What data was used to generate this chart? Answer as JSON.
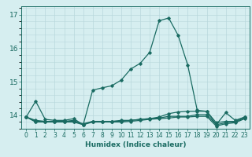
{
  "xlabel": "Humidex (Indice chaleur)",
  "bg_color": "#d6eef0",
  "grid_color": "#b8d8dc",
  "line_color": "#1a6b62",
  "xlim": [
    -0.5,
    23.5
  ],
  "ylim": [
    13.6,
    17.25
  ],
  "yticks": [
    14,
    15,
    16,
    17
  ],
  "xticks": [
    0,
    1,
    2,
    3,
    4,
    5,
    6,
    7,
    8,
    9,
    10,
    11,
    12,
    13,
    14,
    15,
    16,
    17,
    18,
    19,
    20,
    21,
    22,
    23
  ],
  "series": [
    {
      "x": [
        0,
        1,
        2,
        3,
        4,
        5,
        6,
        7,
        8,
        9,
        10,
        11,
        12,
        13,
        14,
        15,
        16,
        17,
        18,
        19,
        20,
        21,
        22,
        23
      ],
      "y": [
        13.95,
        14.42,
        13.88,
        13.85,
        13.85,
        13.9,
        13.72,
        14.75,
        14.82,
        14.88,
        15.05,
        15.38,
        15.55,
        15.88,
        16.82,
        16.9,
        16.38,
        15.5,
        14.15,
        14.12,
        13.72,
        14.08,
        13.85,
        13.95
      ]
    },
    {
      "x": [
        0,
        1,
        2,
        3,
        4,
        5,
        6,
        7,
        8,
        9,
        10,
        11,
        12,
        13,
        14,
        15,
        16,
        17,
        18,
        19,
        20,
        21,
        22,
        23
      ],
      "y": [
        13.95,
        13.85,
        13.82,
        13.82,
        13.82,
        13.85,
        13.72,
        13.82,
        13.82,
        13.82,
        13.85,
        13.85,
        13.88,
        13.9,
        13.95,
        14.05,
        14.1,
        14.12,
        14.12,
        14.12,
        13.78,
        13.82,
        13.82,
        13.95
      ]
    },
    {
      "x": [
        0,
        1,
        2,
        3,
        4,
        5,
        6,
        7,
        8,
        9,
        10,
        11,
        12,
        13,
        14,
        15,
        16,
        17,
        18,
        19,
        20,
        21,
        22,
        23
      ],
      "y": [
        13.95,
        13.82,
        13.82,
        13.82,
        13.82,
        13.82,
        13.75,
        13.82,
        13.82,
        13.82,
        13.82,
        13.85,
        13.88,
        13.9,
        13.92,
        13.97,
        13.97,
        13.97,
        14.02,
        14.02,
        13.72,
        13.78,
        13.8,
        13.92
      ]
    },
    {
      "x": [
        0,
        1,
        2,
        3,
        4,
        5,
        6,
        7,
        8,
        9,
        10,
        11,
        12,
        13,
        14,
        15,
        16,
        17,
        18,
        19,
        20,
        21,
        22,
        23
      ],
      "y": [
        13.95,
        13.8,
        13.8,
        13.8,
        13.8,
        13.8,
        13.72,
        13.8,
        13.8,
        13.8,
        13.8,
        13.82,
        13.85,
        13.88,
        13.9,
        13.92,
        13.95,
        13.95,
        13.97,
        13.97,
        13.68,
        13.75,
        13.78,
        13.9
      ]
    }
  ]
}
